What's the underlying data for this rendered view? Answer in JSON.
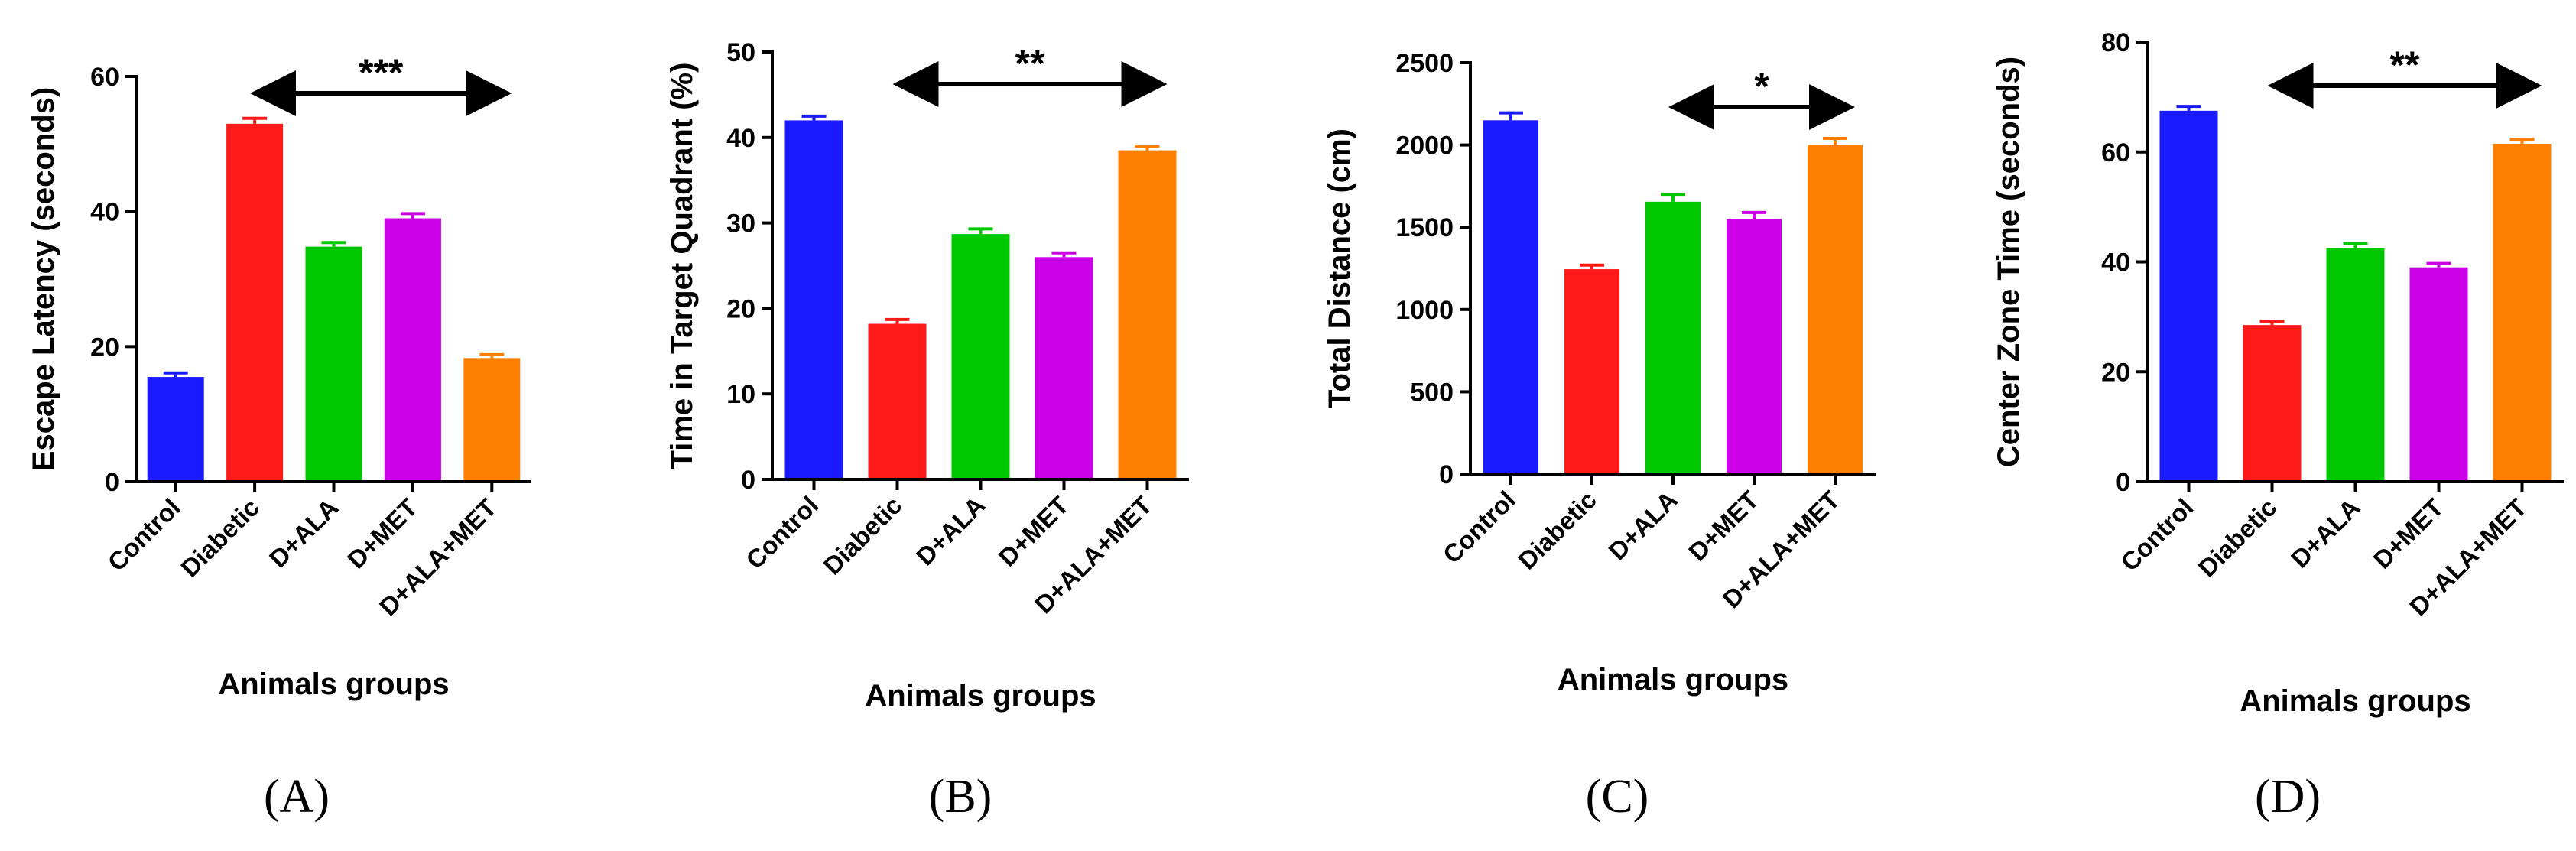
{
  "chart_data": [
    {
      "type": "bar",
      "panel_label": "(A)",
      "ylabel": "Escape Latency (seconds)",
      "xlabel": "Animals groups",
      "categories": [
        "Control",
        "Diabetic",
        "D+ALA",
        "D+MET",
        "D+ALA+MET"
      ],
      "values": [
        15.5,
        53,
        34.8,
        39,
        18.3
      ],
      "errors": [
        0.6,
        0.8,
        0.6,
        0.7,
        0.5
      ],
      "ylim": [
        0,
        60
      ],
      "yticks": [
        "0",
        "20",
        "40",
        "60"
      ],
      "significance": {
        "label": "***",
        "from_category": "Diabetic",
        "to_category": "D+ALA+MET"
      }
    },
    {
      "type": "bar",
      "panel_label": "(B)",
      "ylabel": "Time in Target Quadrant (%)",
      "xlabel": "Animals groups",
      "categories": [
        "Control",
        "Diabetic",
        "D+ALA",
        "D+MET",
        "D+ALA+MET"
      ],
      "values": [
        42,
        18.2,
        28.7,
        26,
        38.5
      ],
      "errors": [
        0.5,
        0.5,
        0.6,
        0.5,
        0.5
      ],
      "ylim": [
        0,
        50
      ],
      "yticks": [
        "0",
        "10",
        "20",
        "30",
        "40",
        "50"
      ],
      "significance": {
        "label": "**",
        "from_category": "Diabetic",
        "to_category": "D+ALA+MET"
      }
    },
    {
      "type": "bar",
      "panel_label": "(C)",
      "ylabel": "Total Distance (cm)",
      "xlabel": "Animals groups",
      "categories": [
        "Control",
        "Diabetic",
        "D+ALA",
        "D+MET",
        "D+ALA+MET"
      ],
      "values": [
        2150,
        1245,
        1655,
        1550,
        2000
      ],
      "errors": [
        45,
        25,
        45,
        40,
        40
      ],
      "ylim": [
        0,
        2500
      ],
      "yticks": [
        "0",
        "500",
        "1000",
        "1500",
        "2000",
        "2500"
      ],
      "significance": {
        "label": "*",
        "from_category": "D+ALA",
        "to_category": "D+ALA+MET"
      }
    },
    {
      "type": "bar",
      "panel_label": "(D)",
      "ylabel": "Center Zone Time (seconds)",
      "xlabel": "Animals groups",
      "categories": [
        "Control",
        "Diabetic",
        "D+ALA",
        "D+MET",
        "D+ALA+MET"
      ],
      "values": [
        67.5,
        28.5,
        42.5,
        39,
        61.5
      ],
      "errors": [
        0.8,
        0.7,
        0.8,
        0.7,
        0.8
      ],
      "ylim": [
        0,
        80
      ],
      "yticks": [
        "0",
        "20",
        "40",
        "60",
        "80"
      ],
      "significance": {
        "label": "**",
        "from_category": "Diabetic",
        "to_category": "D+ALA+MET"
      }
    }
  ],
  "colors": {
    "Control": "#1a1aff",
    "Diabetic": "#ff1a1a",
    "D+ALA": "#00c800",
    "D+MET": "#cc00e6",
    "D+ALA+MET": "#ff8000"
  }
}
